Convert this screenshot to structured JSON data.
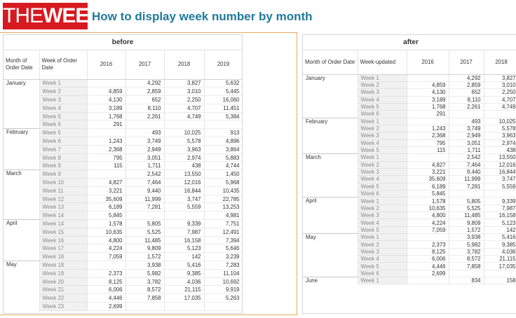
{
  "header": {
    "logo": [
      "THE",
      "WEEK"
    ],
    "title": "How to display week number by month"
  },
  "tables": [
    {
      "title": "before",
      "columns": [
        "Month of Order Date",
        "Week of Order Date",
        "2016",
        "2017",
        "2018",
        "2019"
      ],
      "rows": [
        [
          "January",
          "Week 1",
          null,
          "4,292",
          "3,827",
          "5,632"
        ],
        [
          null,
          "Week 2",
          "4,859",
          "2,859",
          "3,010",
          "5,445"
        ],
        [
          null,
          "Week 3",
          "4,130",
          "652",
          "2,250",
          "16,060"
        ],
        [
          null,
          "Week 4",
          "3,189",
          "8,110",
          "4,707",
          "11,451"
        ],
        [
          null,
          "Week 5",
          "1,768",
          "2,261",
          "4,749",
          "5,384"
        ],
        [
          null,
          "Week 6",
          "291",
          null,
          null,
          null
        ],
        [
          "February",
          "Week 5",
          null,
          "493",
          "10,025",
          "913"
        ],
        [
          null,
          "Week 6",
          "1,243",
          "3,749",
          "5,578",
          "4,896"
        ],
        [
          null,
          "Week 7",
          "2,368",
          "2,949",
          "3,963",
          "3,864"
        ],
        [
          null,
          "Week 8",
          "795",
          "3,051",
          "2,974",
          "5,883"
        ],
        [
          null,
          "Week 9",
          "115",
          "1,711",
          "438",
          "4,744"
        ],
        [
          "March",
          "Week 9",
          null,
          "2,542",
          "13,550",
          "1,450"
        ],
        [
          null,
          "Week 10",
          "4,827",
          "7,464",
          "12,016",
          "5,968"
        ],
        [
          null,
          "Week 11",
          "3,221",
          "9,440",
          "16,844",
          "10,435"
        ],
        [
          null,
          "Week 12",
          "35,609",
          "11,999",
          "3,747",
          "22,785"
        ],
        [
          null,
          "Week 13",
          "6,189",
          "7,281",
          "5,559",
          "13,253"
        ],
        [
          null,
          "Week 14",
          "5,845",
          null,
          null,
          "4,981"
        ],
        [
          "April",
          "Week 14",
          "1,578",
          "5,805",
          "9,339",
          "7,751"
        ],
        [
          null,
          "Week 15",
          "10,635",
          "5,525",
          "7,987",
          "12,491"
        ],
        [
          null,
          "Week 16",
          "4,800",
          "11,485",
          "16,158",
          "7,394"
        ],
        [
          null,
          "Week 17",
          "4,224",
          "9,809",
          "5,123",
          "5,646"
        ],
        [
          null,
          "Week 18",
          "7,059",
          "1,572",
          "142",
          "3,239"
        ],
        [
          "May",
          "Week 18",
          null,
          "3,938",
          "5,416",
          "7,283"
        ],
        [
          null,
          "Week 19",
          "2,373",
          "5,982",
          "9,385",
          "11,104"
        ],
        [
          null,
          "Week 20",
          "8,125",
          "3,782",
          "4,036",
          "10,692"
        ],
        [
          null,
          "Week 21",
          "6,006",
          "8,572",
          "21,115",
          "9,919"
        ],
        [
          null,
          "Week 22",
          "4,446",
          "7,858",
          "17,035",
          "5,263"
        ],
        [
          null,
          "Week 23",
          "2,699",
          null,
          null,
          null
        ]
      ]
    },
    {
      "title": "after",
      "columns": [
        "Month of Order Date",
        "Week-updated",
        "2016",
        "2017",
        "2018"
      ],
      "rows": [
        [
          "January",
          "Week 1",
          null,
          "4,292",
          "3,827"
        ],
        [
          null,
          "Week 2",
          "4,859",
          "2,859",
          "3,010"
        ],
        [
          null,
          "Week 3",
          "4,130",
          "652",
          "2,250"
        ],
        [
          null,
          "Week 4",
          "3,189",
          "8,110",
          "4,707"
        ],
        [
          null,
          "Week 5",
          "1,768",
          "2,261",
          "4,749"
        ],
        [
          null,
          "Week 6",
          "291",
          null,
          null
        ],
        [
          "February",
          "Week 1",
          null,
          "493",
          "10,025"
        ],
        [
          null,
          "Week 2",
          "1,243",
          "3,749",
          "5,578"
        ],
        [
          null,
          "Week 3",
          "2,368",
          "2,949",
          "3,963"
        ],
        [
          null,
          "Week 4",
          "795",
          "3,051",
          "2,974"
        ],
        [
          null,
          "Week 5",
          "115",
          "1,711",
          "438"
        ],
        [
          "March",
          "Week 1",
          null,
          "2,542",
          "13,550"
        ],
        [
          null,
          "Week 2",
          "4,827",
          "7,464",
          "12,016"
        ],
        [
          null,
          "Week 3",
          "3,221",
          "9,440",
          "16,844"
        ],
        [
          null,
          "Week 4",
          "35,609",
          "11,999",
          "3,747"
        ],
        [
          null,
          "Week 5",
          "6,189",
          "7,281",
          "5,559"
        ],
        [
          null,
          "Week 6",
          "5,845",
          null,
          null
        ],
        [
          "April",
          "Week 1",
          "1,578",
          "5,805",
          "9,339"
        ],
        [
          null,
          "Week 2",
          "10,635",
          "5,525",
          "7,987"
        ],
        [
          null,
          "Week 3",
          "4,800",
          "11,485",
          "16,158"
        ],
        [
          null,
          "Week 4",
          "4,224",
          "9,809",
          "5,123"
        ],
        [
          null,
          "Week 5",
          "7,059",
          "1,572",
          "142"
        ],
        [
          "May",
          "Week 1",
          null,
          "3,938",
          "5,416"
        ],
        [
          null,
          "Week 2",
          "2,373",
          "5,982",
          "9,385"
        ],
        [
          null,
          "Week 3",
          "8,125",
          "3,782",
          "4,036"
        ],
        [
          null,
          "Week 4",
          "6,006",
          "8,572",
          "21,115"
        ],
        [
          null,
          "Week 5",
          "4,446",
          "7,858",
          "17,035"
        ],
        [
          null,
          "Week 6",
          "2,699",
          null,
          null
        ],
        [
          "June",
          "Week 1",
          null,
          "834",
          "158"
        ]
      ]
    }
  ]
}
